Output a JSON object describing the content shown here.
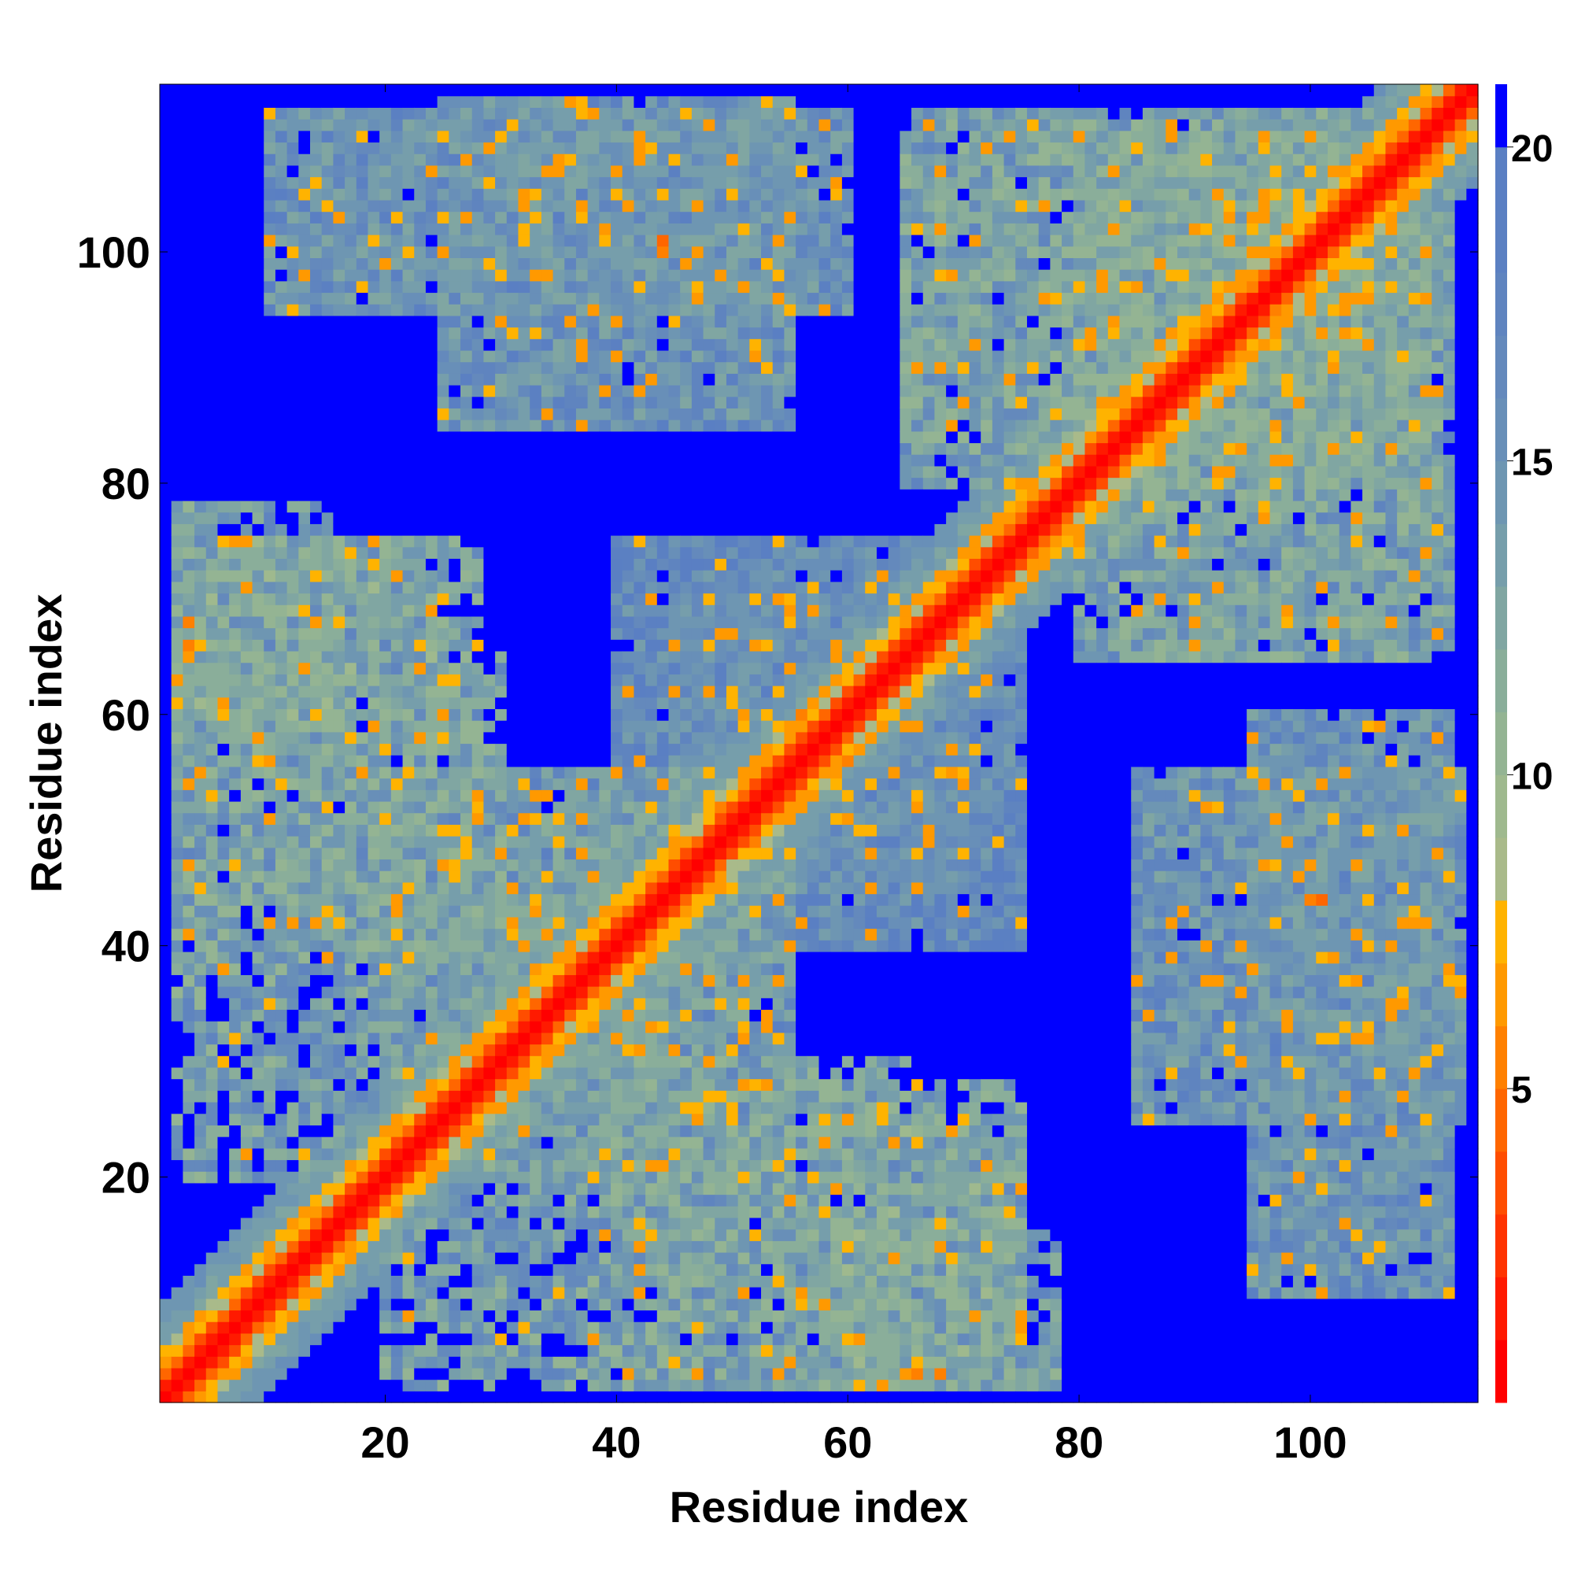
{
  "chart_data": {
    "type": "heatmap",
    "title": "",
    "xlabel": "Residue index",
    "ylabel": "Residue index",
    "n_residues": 114,
    "xlim": [
      1,
      114
    ],
    "ylim": [
      1,
      114
    ],
    "x_ticks": [
      20,
      40,
      60,
      80,
      100
    ],
    "y_ticks": [
      20,
      40,
      60,
      80,
      100
    ],
    "colorbar": {
      "range": [
        0,
        21
      ],
      "ticks": [
        5,
        10,
        15,
        20
      ],
      "levels": [
        {
          "max": 1,
          "color": "#ff0000"
        },
        {
          "max": 2,
          "color": "#ff1a00"
        },
        {
          "max": 3,
          "color": "#ff3300"
        },
        {
          "max": 4,
          "color": "#ff4d00"
        },
        {
          "max": 5,
          "color": "#ff6600"
        },
        {
          "max": 6,
          "color": "#ff8000"
        },
        {
          "max": 7,
          "color": "#ff9900"
        },
        {
          "max": 8,
          "color": "#ffb300"
        },
        {
          "max": 9,
          "color": "#a9ba8a"
        },
        {
          "max": 10,
          "color": "#9fb98e"
        },
        {
          "max": 11,
          "color": "#94b493"
        },
        {
          "max": 12,
          "color": "#8aae9a"
        },
        {
          "max": 13,
          "color": "#80a6a2"
        },
        {
          "max": 14,
          "color": "#769eab"
        },
        {
          "max": 15,
          "color": "#6e96b2"
        },
        {
          "max": 16,
          "color": "#688fb8"
        },
        {
          "max": 17,
          "color": "#6489bc"
        },
        {
          "max": 18,
          "color": "#5f84bf"
        },
        {
          "max": 19,
          "color": "#5b80c2"
        },
        {
          "max": 20,
          "color": "#5a7fc3"
        },
        {
          "max": 21,
          "color": "#0000ff"
        }
      ]
    },
    "matrix_description": "Symmetric residue-residue distance map (values 0-21); main diagonal near 0 (red), band of 5-8 along diagonal, off-diagonal contact patches 9-20, background saturated at 21 (blue).",
    "contact_patches": [
      {
        "i": [
          2,
          30
        ],
        "j": [
          20,
          65
        ],
        "level": 14
      },
      {
        "i": [
          40,
          75
        ],
        "j": [
          2,
          28
        ],
        "level": 14
      },
      {
        "i": [
          65,
          110
        ],
        "j": [
          80,
          112
        ],
        "level": 14
      },
      {
        "i": [
          80,
          112
        ],
        "j": [
          65,
          110
        ],
        "level": 14
      },
      {
        "i": [
          2,
          25
        ],
        "j": [
          60,
          75
        ],
        "level": 13
      },
      {
        "i": [
          55,
          78
        ],
        "j": [
          2,
          15
        ],
        "level": 14
      },
      {
        "i": [
          10,
          60
        ],
        "j": [
          95,
          112
        ],
        "level": 16
      },
      {
        "i": [
          95,
          112
        ],
        "j": [
          10,
          60
        ],
        "level": 16
      },
      {
        "i": [
          85,
          113
        ],
        "j": [
          25,
          55
        ],
        "level": 16
      },
      {
        "i": [
          25,
          55
        ],
        "j": [
          85,
          113
        ],
        "level": 16
      },
      {
        "i": [
          40,
          70
        ],
        "j": [
          45,
          75
        ],
        "level": 17
      },
      {
        "i": [
          45,
          75
        ],
        "j": [
          40,
          70
        ],
        "level": 17
      },
      {
        "i": [
          20,
          50
        ],
        "j": [
          30,
          55
        ],
        "level": 15
      },
      {
        "i": [
          30,
          55
        ],
        "j": [
          20,
          50
        ],
        "level": 15
      }
    ],
    "hot_spots": [
      {
        "i": 66,
        "j": 3,
        "level": 6
      },
      {
        "i": 68,
        "j": 3,
        "level": 6
      },
      {
        "i": 97,
        "j": 95,
        "level": 6
      },
      {
        "i": 44,
        "j": 100,
        "level": 6
      },
      {
        "i": 3,
        "j": 68,
        "level": 6
      },
      {
        "i": 101,
        "j": 44,
        "level": 5
      },
      {
        "i": 21,
        "j": 72,
        "level": 7
      },
      {
        "i": 60,
        "j": 56,
        "level": 6
      },
      {
        "i": 49,
        "j": 52,
        "level": 6
      },
      {
        "i": 95,
        "j": 100,
        "level": 7
      },
      {
        "i": 90,
        "j": 68,
        "level": 7
      },
      {
        "i": 66,
        "j": 90,
        "level": 7
      }
    ]
  }
}
